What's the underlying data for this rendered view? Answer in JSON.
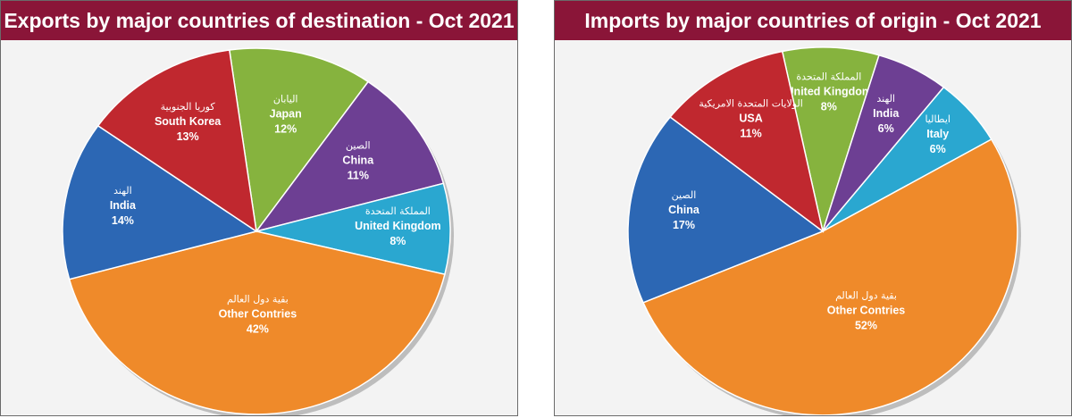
{
  "chart_data": [
    {
      "type": "pie",
      "title": "Exports by major countries of destination - Oct 2021",
      "slices": [
        {
          "name": "Japan",
          "name_ar": "اليابان",
          "value": 12,
          "label": "12%",
          "color": "#86b33e"
        },
        {
          "name": "China",
          "name_ar": "الصين",
          "value": 11,
          "label": "11%",
          "color": "#6d3f93"
        },
        {
          "name": "United Kingdom",
          "name_ar": "المملكة المتحدة",
          "value": 8,
          "label": "8%",
          "color": "#2aa7d0"
        },
        {
          "name": "Other Contries",
          "name_ar": "بقية دول العالم",
          "value": 42,
          "label": "42%",
          "color": "#ef8a2a"
        },
        {
          "name": "India",
          "name_ar": "الهند",
          "value": 14,
          "label": "14%",
          "color": "#2c67b4"
        },
        {
          "name": "South Korea",
          "name_ar": "كوريا الجنوبية",
          "value": 13,
          "label": "13%",
          "color": "#c0282f"
        }
      ]
    },
    {
      "type": "pie",
      "title": "Imports by major countries of origin - Oct 2021",
      "slices": [
        {
          "name": "United Kingdom",
          "name_ar": "المملكة المتحدة",
          "value": 8,
          "label": "8%",
          "color": "#86b33e"
        },
        {
          "name": "India",
          "name_ar": "الهند",
          "value": 6,
          "label": "6%",
          "color": "#6d3f93"
        },
        {
          "name": "Italy",
          "name_ar": "ايطاليا",
          "value": 6,
          "label": "6%",
          "color": "#2aa7d0"
        },
        {
          "name": "Other Contries",
          "name_ar": "بقية دول العالم",
          "value": 52,
          "label": "52%",
          "color": "#ef8a2a"
        },
        {
          "name": "China",
          "name_ar": "الصين",
          "value": 17,
          "label": "17%",
          "color": "#2c67b4"
        },
        {
          "name": "USA",
          "name_ar": "الولايات المتحدة الامريكية",
          "value": 11,
          "label": "11%",
          "color": "#c0282f"
        }
      ]
    }
  ]
}
